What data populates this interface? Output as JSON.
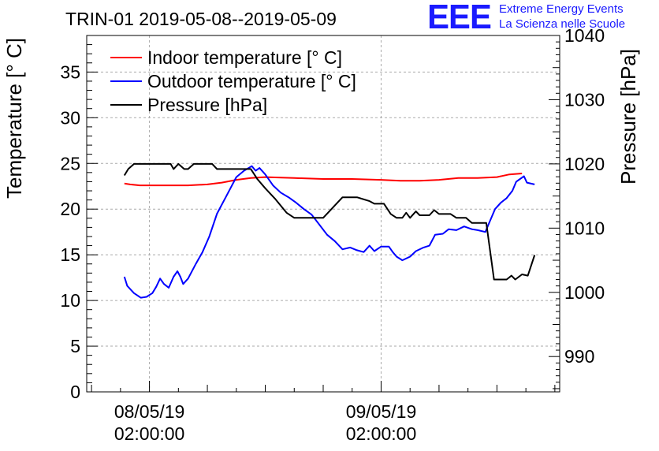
{
  "chart_data": {
    "type": "line",
    "title": "TRIN-01 2019-05-08--2019-05-09",
    "ylabel": "Temperature [° C]",
    "y2label": "Pressure [hPa]",
    "ylim": [
      0,
      39
    ],
    "y2lim": [
      984.5,
      1040
    ],
    "yticks": [
      0,
      5,
      10,
      15,
      20,
      25,
      30,
      35
    ],
    "y2ticks": [
      990,
      1000,
      1010,
      1020,
      1030,
      1040
    ],
    "x_tick_labels": [
      {
        "date": "08/05/19",
        "time": "02:00:00",
        "hours": 0
      },
      {
        "date": "09/05/19",
        "time": "02:00:00",
        "hours": 24
      }
    ],
    "xlim_hours": [
      -6.5,
      42.5
    ],
    "grid": true,
    "legend_position": "top-left",
    "series": [
      {
        "name": "Indoor temperature [° C]",
        "axis": "left",
        "color": "#ff0000",
        "points": [
          [
            -2.6,
            22.8
          ],
          [
            -2.0,
            22.7
          ],
          [
            -1.0,
            22.6
          ],
          [
            0,
            22.6
          ],
          [
            2,
            22.6
          ],
          [
            4,
            22.6
          ],
          [
            6,
            22.7
          ],
          [
            7.5,
            22.9
          ],
          [
            9,
            23.2
          ],
          [
            10.5,
            23.4
          ],
          [
            12,
            23.5
          ],
          [
            15,
            23.4
          ],
          [
            18,
            23.3
          ],
          [
            21,
            23.3
          ],
          [
            24,
            23.2
          ],
          [
            26,
            23.1
          ],
          [
            28,
            23.1
          ],
          [
            30,
            23.2
          ],
          [
            32,
            23.4
          ],
          [
            34,
            23.4
          ],
          [
            36,
            23.5
          ],
          [
            37.3,
            23.8
          ],
          [
            38.6,
            23.9
          ]
        ]
      },
      {
        "name": "Outdoor temperature [° C]",
        "axis": "left",
        "color": "#0000ff",
        "points": [
          [
            -2.6,
            12.6
          ],
          [
            -2.3,
            11.6
          ],
          [
            -1.6,
            10.8
          ],
          [
            -0.9,
            10.3
          ],
          [
            -0.3,
            10.4
          ],
          [
            0.3,
            10.8
          ],
          [
            0.7,
            11.5
          ],
          [
            1.1,
            12.4
          ],
          [
            1.5,
            11.8
          ],
          [
            2.0,
            11.4
          ],
          [
            2.5,
            12.6
          ],
          [
            2.9,
            13.2
          ],
          [
            3.2,
            12.6
          ],
          [
            3.5,
            11.8
          ],
          [
            4.0,
            12.4
          ],
          [
            4.8,
            14.0
          ],
          [
            5.5,
            15.3
          ],
          [
            6.2,
            17.0
          ],
          [
            7.0,
            19.5
          ],
          [
            8.0,
            21.5
          ],
          [
            9.0,
            23.5
          ],
          [
            9.8,
            24.2
          ],
          [
            10.6,
            24.7
          ],
          [
            11.0,
            24.2
          ],
          [
            11.4,
            24.5
          ],
          [
            12.0,
            23.8
          ],
          [
            12.8,
            22.6
          ],
          [
            13.6,
            21.8
          ],
          [
            14.4,
            21.3
          ],
          [
            15.2,
            20.7
          ],
          [
            16.0,
            20.0
          ],
          [
            16.8,
            19.4
          ],
          [
            17.6,
            18.3
          ],
          [
            18.4,
            17.2
          ],
          [
            19.2,
            16.5
          ],
          [
            20.0,
            15.6
          ],
          [
            20.8,
            15.8
          ],
          [
            21.5,
            15.5
          ],
          [
            22.2,
            15.3
          ],
          [
            22.8,
            16.0
          ],
          [
            23.3,
            15.4
          ],
          [
            24.0,
            15.9
          ],
          [
            24.8,
            15.9
          ],
          [
            25.2,
            15.3
          ],
          [
            25.6,
            14.8
          ],
          [
            26.2,
            14.4
          ],
          [
            27.0,
            14.8
          ],
          [
            27.6,
            15.4
          ],
          [
            28.4,
            15.8
          ],
          [
            29.0,
            16.0
          ],
          [
            29.6,
            17.2
          ],
          [
            30.4,
            17.3
          ],
          [
            31.0,
            17.8
          ],
          [
            31.8,
            17.7
          ],
          [
            32.6,
            18.1
          ],
          [
            33.4,
            17.8
          ],
          [
            34.0,
            17.7
          ],
          [
            34.8,
            17.5
          ],
          [
            35.2,
            18.5
          ],
          [
            35.8,
            20.0
          ],
          [
            36.4,
            20.7
          ],
          [
            37.0,
            21.2
          ],
          [
            37.6,
            22.0
          ],
          [
            38.0,
            23.0
          ],
          [
            38.8,
            23.6
          ],
          [
            39.1,
            22.9
          ],
          [
            39.9,
            22.7
          ]
        ]
      },
      {
        "name": "Pressure [hPa]",
        "axis": "right",
        "color": "#000000",
        "points": [
          [
            -2.6,
            1018.2
          ],
          [
            -2.2,
            1019.2
          ],
          [
            -1.6,
            1020
          ],
          [
            0,
            1020
          ],
          [
            1.5,
            1020
          ],
          [
            2.2,
            1020
          ],
          [
            2.5,
            1019.2
          ],
          [
            3.0,
            1020
          ],
          [
            3.6,
            1019.2
          ],
          [
            4.0,
            1019.2
          ],
          [
            4.6,
            1020
          ],
          [
            6.5,
            1020
          ],
          [
            7.0,
            1019.2
          ],
          [
            10.5,
            1019.2
          ],
          [
            11.2,
            1017.6
          ],
          [
            12.0,
            1016.2
          ],
          [
            13.0,
            1014.6
          ],
          [
            14.2,
            1012.4
          ],
          [
            15.0,
            1011.6
          ],
          [
            16.6,
            1011.6
          ],
          [
            17.5,
            1011.6
          ],
          [
            18.0,
            1011.6
          ],
          [
            19.0,
            1013.2
          ],
          [
            20.0,
            1014.8
          ],
          [
            21.5,
            1014.8
          ],
          [
            22.8,
            1014.2
          ],
          [
            23.3,
            1013.8
          ],
          [
            24.3,
            1013.8
          ],
          [
            25.0,
            1012.2
          ],
          [
            25.6,
            1011.6
          ],
          [
            26.2,
            1011.6
          ],
          [
            26.6,
            1012.4
          ],
          [
            27.0,
            1011.6
          ],
          [
            27.6,
            1012.6
          ],
          [
            28.0,
            1012.0
          ],
          [
            29.0,
            1012.0
          ],
          [
            29.5,
            1012.8
          ],
          [
            30.0,
            1012.2
          ],
          [
            31.2,
            1012.2
          ],
          [
            31.8,
            1011.6
          ],
          [
            32.8,
            1011.6
          ],
          [
            33.4,
            1010.8
          ],
          [
            34.4,
            1010.8
          ],
          [
            34.9,
            1010.8
          ],
          [
            35.7,
            1002.0
          ],
          [
            37.0,
            1002.0
          ],
          [
            37.5,
            1002.6
          ],
          [
            37.9,
            1002.0
          ],
          [
            38.6,
            1002.8
          ],
          [
            39.2,
            1002.6
          ],
          [
            39.9,
            1005.8
          ]
        ]
      }
    ]
  },
  "logo": {
    "mark": "EEE",
    "line1": "Extreme Energy Events",
    "line2": "La Scienza nelle Scuole"
  }
}
